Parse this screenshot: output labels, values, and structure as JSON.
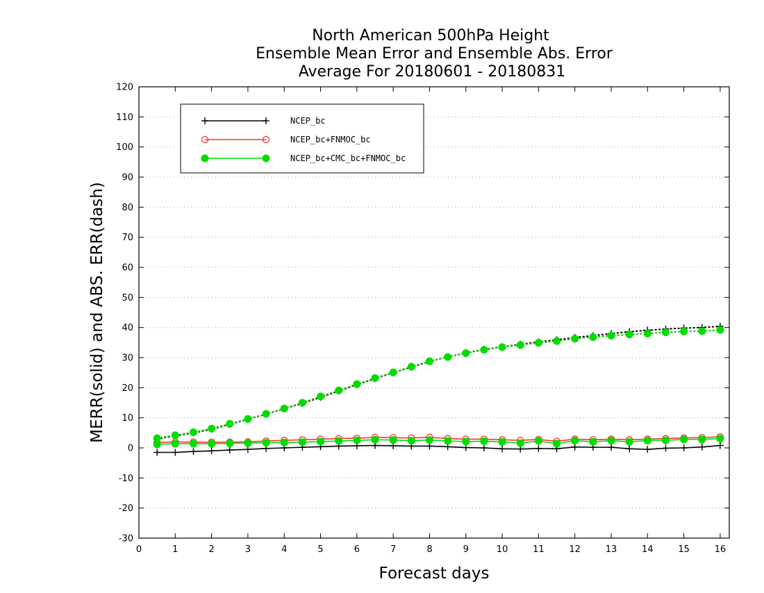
{
  "chart_data": {
    "type": "line",
    "title": [
      "North American 500hPa Height",
      "Ensemble Mean Error and Ensemble Abs. Error",
      "Average For 20180601 - 20180831"
    ],
    "xlabel": "Forecast days",
    "ylabel": "MERR(solid) and ABS. ERR(dash)",
    "xlim": [
      0,
      16.25
    ],
    "ylim": [
      -30,
      120
    ],
    "xticks": [
      0,
      1,
      2,
      3,
      4,
      5,
      6,
      7,
      8,
      9,
      10,
      11,
      12,
      13,
      14,
      15,
      16
    ],
    "yticks": [
      -30,
      -20,
      -10,
      0,
      10,
      20,
      30,
      40,
      50,
      60,
      70,
      80,
      90,
      100,
      110,
      120
    ],
    "grid": "horizontal-dotted",
    "legend_position": "top-left",
    "x": [
      0.5,
      1,
      1.5,
      2,
      2.5,
      3,
      3.5,
      4,
      4.5,
      5,
      5.5,
      6,
      6.5,
      7,
      7.5,
      8,
      8.5,
      9,
      9.5,
      10,
      10.5,
      11,
      11.5,
      12,
      12.5,
      13,
      13.5,
      14,
      14.5,
      15,
      15.5,
      16
    ],
    "series": [
      {
        "name": "NCEP_bc",
        "color": "#000000",
        "marker": "plus",
        "mean_error": [
          -1.5,
          -1.5,
          -1.2,
          -1.0,
          -0.7,
          -0.5,
          -0.2,
          0.0,
          0.2,
          0.4,
          0.6,
          0.7,
          0.8,
          0.7,
          0.6,
          0.6,
          0.4,
          0.1,
          0.0,
          -0.3,
          -0.4,
          -0.2,
          -0.3,
          0.3,
          0.2,
          0.2,
          -0.3,
          -0.5,
          -0.1,
          0.0,
          0.3,
          0.8
        ],
        "abs_error": [
          3.0,
          4.0,
          5.0,
          6.2,
          7.8,
          9.5,
          11.2,
          13.0,
          14.8,
          16.8,
          18.9,
          21.0,
          23.0,
          25.0,
          26.8,
          28.7,
          30.2,
          31.6,
          32.7,
          33.6,
          34.4,
          35.2,
          35.9,
          36.7,
          37.3,
          38.0,
          38.6,
          39.1,
          39.5,
          39.8,
          40.0,
          40.4
        ]
      },
      {
        "name": "NCEP_bc+FNMOC_bc",
        "color": "#ff3030",
        "marker": "open-circle",
        "mean_error": [
          1.8,
          2.0,
          1.9,
          1.9,
          1.9,
          2.0,
          2.3,
          2.5,
          2.7,
          2.9,
          3.1,
          3.2,
          3.5,
          3.4,
          3.3,
          3.5,
          3.1,
          2.9,
          2.9,
          2.7,
          2.5,
          2.8,
          2.2,
          2.9,
          2.7,
          2.9,
          2.7,
          2.9,
          3.1,
          3.3,
          3.4,
          3.7
        ],
        "abs_error": [
          3.2,
          4.2,
          5.2,
          6.4,
          8.0,
          9.6,
          11.3,
          13.1,
          15.0,
          17.1,
          19.1,
          21.2,
          23.2,
          25.1,
          27.0,
          28.8,
          30.2,
          31.5,
          32.6,
          33.5,
          34.2,
          34.9,
          35.5,
          36.3,
          36.8,
          37.3,
          37.7,
          38.0,
          38.4,
          38.7,
          38.8,
          39.2
        ]
      },
      {
        "name": "NCEP_bc+CMC_bc+FNMOC_bc",
        "color": "#00dd00",
        "marker": "filled-circle",
        "mean_error": [
          1.2,
          1.4,
          1.4,
          1.4,
          1.5,
          1.6,
          1.7,
          1.8,
          1.9,
          2.1,
          2.3,
          2.5,
          2.7,
          2.6,
          2.4,
          2.6,
          2.3,
          2.1,
          2.2,
          2.0,
          1.6,
          2.3,
          1.4,
          2.4,
          2.0,
          2.4,
          2.0,
          2.4,
          2.5,
          2.8,
          2.8,
          3.1
        ],
        "abs_error": [
          3.2,
          4.2,
          5.2,
          6.4,
          8.0,
          9.6,
          11.3,
          13.1,
          15.0,
          17.1,
          19.1,
          21.2,
          23.2,
          25.1,
          27.0,
          28.8,
          30.2,
          31.5,
          32.6,
          33.5,
          34.2,
          34.9,
          35.5,
          36.3,
          36.8,
          37.3,
          37.7,
          38.0,
          38.4,
          38.7,
          38.8,
          39.2
        ]
      }
    ]
  }
}
